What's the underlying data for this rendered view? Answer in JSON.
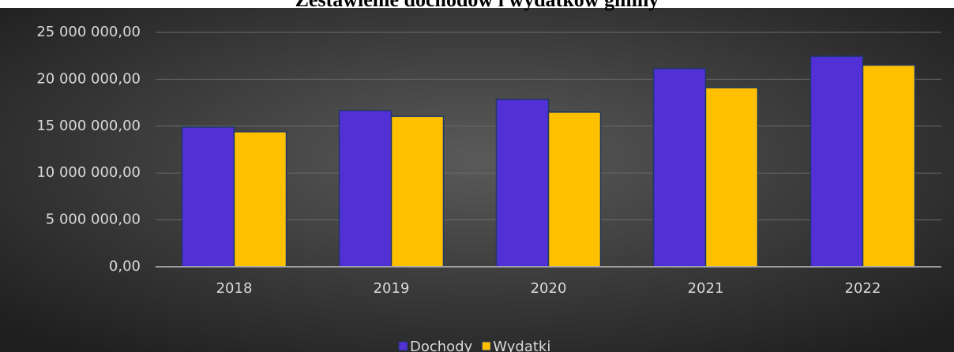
{
  "chart_data": {
    "type": "bar",
    "title": "Zestawienie dochodów i wydatków gminy",
    "categories": [
      "2018",
      "2019",
      "2020",
      "2021",
      "2022"
    ],
    "series": [
      {
        "name": "Dochody",
        "color": "#5130d6",
        "values": [
          14900000,
          16650000,
          17850000,
          21150000,
          22450000
        ]
      },
      {
        "name": "Wydatki",
        "color": "#ffc000",
        "values": [
          14400000,
          16050000,
          16500000,
          19100000,
          21500000
        ]
      }
    ],
    "ylim": [
      0,
      25000000
    ],
    "yticks": [
      {
        "value": 0,
        "label": "0,00"
      },
      {
        "value": 5000000,
        "label": "5 000 000,00"
      },
      {
        "value": 10000000,
        "label": "10 000 000,00"
      },
      {
        "value": 15000000,
        "label": "15 000 000,00"
      },
      {
        "value": 20000000,
        "label": "20 000 000,00"
      },
      {
        "value": 25000000,
        "label": "25 000 000,00"
      }
    ],
    "grid": true,
    "legend": "bottom"
  }
}
